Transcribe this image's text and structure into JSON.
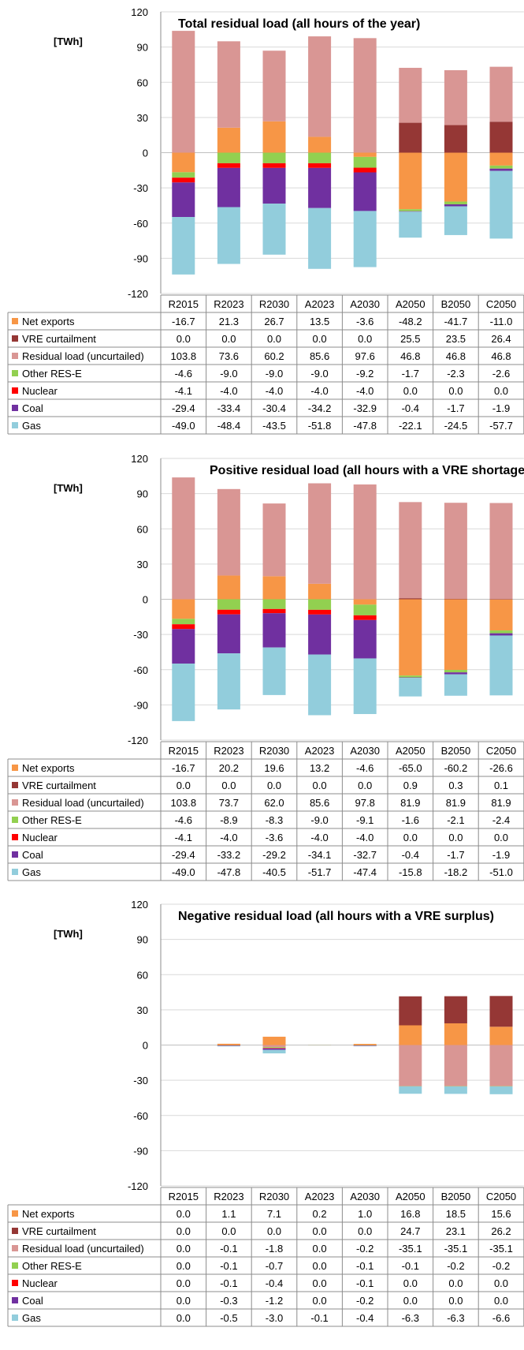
{
  "chart_data": [
    {
      "type": "bar",
      "title": "Total residual load (all hours of the year)",
      "ylabel": "[TWh]",
      "ylim": [
        -120,
        120
      ],
      "yticks": [
        120,
        90,
        60,
        30,
        0,
        -30,
        -60,
        -90,
        -120
      ],
      "categories": [
        "R2015",
        "R2023",
        "R2030",
        "A2023",
        "A2030",
        "A2050",
        "B2050",
        "C2050"
      ],
      "series": [
        {
          "name": "Net exports",
          "color": "#f79646",
          "values": [
            -16.7,
            21.3,
            26.7,
            13.5,
            -3.6,
            -48.2,
            -41.7,
            -11.0
          ]
        },
        {
          "name": "VRE curtailment",
          "color": "#953735",
          "values": [
            0.0,
            0.0,
            0.0,
            0.0,
            0.0,
            25.5,
            23.5,
            26.4
          ]
        },
        {
          "name": "Residual load (uncurtailed)",
          "color": "#d99694",
          "values": [
            103.8,
            73.6,
            60.2,
            85.6,
            97.6,
            46.8,
            46.8,
            46.8
          ]
        },
        {
          "name": "Other RES-E",
          "color": "#92d050",
          "values": [
            -4.6,
            -9.0,
            -9.0,
            -9.0,
            -9.2,
            -1.7,
            -2.3,
            -2.6
          ]
        },
        {
          "name": "Nuclear",
          "color": "#ff0000",
          "values": [
            -4.1,
            -4.0,
            -4.0,
            -4.0,
            -4.0,
            0.0,
            0.0,
            0.0
          ]
        },
        {
          "name": "Coal",
          "color": "#7030a0",
          "values": [
            -29.4,
            -33.4,
            -30.4,
            -34.2,
            -32.9,
            -0.4,
            -1.7,
            -1.9
          ]
        },
        {
          "name": "Gas",
          "color": "#92cddc",
          "values": [
            -49.0,
            -48.4,
            -43.5,
            -51.8,
            -47.8,
            -22.1,
            -24.5,
            -57.7
          ]
        }
      ],
      "table_rows": [
        [
          "-16.7",
          "21.3",
          "26.7",
          "13.5",
          "-3.6",
          "-48.2",
          "-41.7",
          "-11.0"
        ],
        [
          "0.0",
          "0.0",
          "0.0",
          "0.0",
          "0.0",
          "25.5",
          "23.5",
          "26.4"
        ],
        [
          "103.8",
          "73.6",
          "60.2",
          "85.6",
          "97.6",
          "46.8",
          "46.8",
          "46.8"
        ],
        [
          "-4.6",
          "-9.0",
          "-9.0",
          "-9.0",
          "-9.2",
          "-1.7",
          "-2.3",
          "-2.6"
        ],
        [
          "-4.1",
          "-4.0",
          "-4.0",
          "-4.0",
          "-4.0",
          "0.0",
          "0.0",
          "0.0"
        ],
        [
          "-29.4",
          "-33.4",
          "-30.4",
          "-34.2",
          "-32.9",
          "-0.4",
          "-1.7",
          "-1.9"
        ],
        [
          "-49.0",
          "-48.4",
          "-43.5",
          "-51.8",
          "-47.8",
          "-22.1",
          "-24.5",
          "-57.7"
        ]
      ]
    },
    {
      "type": "bar",
      "title": "Positive residual load (all hours with a VRE shortage)",
      "ylabel": "[TWh]",
      "ylim": [
        -120,
        120
      ],
      "yticks": [
        120,
        90,
        60,
        30,
        0,
        -30,
        -60,
        -90,
        -120
      ],
      "categories": [
        "R2015",
        "R2023",
        "R2030",
        "A2023",
        "A2030",
        "A2050",
        "B2050",
        "C2050"
      ],
      "series": [
        {
          "name": "Net exports",
          "color": "#f79646",
          "values": [
            -16.7,
            20.2,
            19.6,
            13.2,
            -4.6,
            -65.0,
            -60.2,
            -26.6
          ]
        },
        {
          "name": "VRE curtailment",
          "color": "#953735",
          "values": [
            0.0,
            0.0,
            0.0,
            0.0,
            0.0,
            0.9,
            0.3,
            0.1
          ]
        },
        {
          "name": "Residual load (uncurtailed)",
          "color": "#d99694",
          "values": [
            103.8,
            73.7,
            62.0,
            85.6,
            97.8,
            81.9,
            81.9,
            81.9
          ]
        },
        {
          "name": "Other RES-E",
          "color": "#92d050",
          "values": [
            -4.6,
            -8.9,
            -8.3,
            -9.0,
            -9.1,
            -1.6,
            -2.1,
            -2.4
          ]
        },
        {
          "name": "Nuclear",
          "color": "#ff0000",
          "values": [
            -4.1,
            -4.0,
            -3.6,
            -4.0,
            -4.0,
            0.0,
            0.0,
            0.0
          ]
        },
        {
          "name": "Coal",
          "color": "#7030a0",
          "values": [
            -29.4,
            -33.2,
            -29.2,
            -34.1,
            -32.7,
            -0.4,
            -1.7,
            -1.9
          ]
        },
        {
          "name": "Gas",
          "color": "#92cddc",
          "values": [
            -49.0,
            -47.8,
            -40.5,
            -51.7,
            -47.4,
            -15.8,
            -18.2,
            -51.0
          ]
        }
      ],
      "table_rows": [
        [
          "-16.7",
          "20.2",
          "19.6",
          "13.2",
          "-4.6",
          "-65.0",
          "-60.2",
          "-26.6"
        ],
        [
          "0.0",
          "0.0",
          "0.0",
          "0.0",
          "0.0",
          "0.9",
          "0.3",
          "0.1"
        ],
        [
          "103.8",
          "73.7",
          "62.0",
          "85.6",
          "97.8",
          "81.9",
          "81.9",
          "81.9"
        ],
        [
          "-4.6",
          "-8.9",
          "-8.3",
          "-9.0",
          "-9.1",
          "-1.6",
          "-2.1",
          "-2.4"
        ],
        [
          "-4.1",
          "-4.0",
          "-3.6",
          "-4.0",
          "-4.0",
          "0.0",
          "0.0",
          "0.0"
        ],
        [
          "-29.4",
          "-33.2",
          "-29.2",
          "-34.1",
          "-32.7",
          "-0.4",
          "-1.7",
          "-1.9"
        ],
        [
          "-49.0",
          "-47.8",
          "-40.5",
          "-51.7",
          "-47.4",
          "-15.8",
          "-18.2",
          "-51.0"
        ]
      ]
    },
    {
      "type": "bar",
      "title": "Negative residual load (all hours with a VRE surplus)",
      "ylabel": "[TWh]",
      "ylim": [
        -120,
        120
      ],
      "yticks": [
        120,
        90,
        60,
        30,
        0,
        -30,
        -60,
        -90,
        -120
      ],
      "categories": [
        "R2015",
        "R2023",
        "R2030",
        "A2023",
        "A2030",
        "A2050",
        "B2050",
        "C2050"
      ],
      "series": [
        {
          "name": "Net exports",
          "color": "#f79646",
          "values": [
            0.0,
            1.1,
            7.1,
            0.2,
            1.0,
            16.8,
            18.5,
            15.6
          ]
        },
        {
          "name": "VRE curtailment",
          "color": "#953735",
          "values": [
            0.0,
            0.0,
            0.0,
            0.0,
            0.0,
            24.7,
            23.1,
            26.2
          ]
        },
        {
          "name": "Residual load (uncurtailed)",
          "color": "#d99694",
          "values": [
            0.0,
            -0.1,
            -1.8,
            0.0,
            -0.2,
            -35.1,
            -35.1,
            -35.1
          ]
        },
        {
          "name": "Other RES-E",
          "color": "#92d050",
          "values": [
            0.0,
            -0.1,
            -0.7,
            0.0,
            -0.1,
            -0.1,
            -0.2,
            -0.2
          ]
        },
        {
          "name": "Nuclear",
          "color": "#ff0000",
          "values": [
            0.0,
            -0.1,
            -0.4,
            0.0,
            -0.1,
            0.0,
            0.0,
            0.0
          ]
        },
        {
          "name": "Coal",
          "color": "#7030a0",
          "values": [
            0.0,
            -0.3,
            -1.2,
            0.0,
            -0.2,
            0.0,
            0.0,
            0.0
          ]
        },
        {
          "name": "Gas",
          "color": "#92cddc",
          "values": [
            0.0,
            -0.5,
            -3.0,
            -0.1,
            -0.4,
            -6.3,
            -6.3,
            -6.6
          ]
        }
      ],
      "table_rows": [
        [
          "0.0",
          "1.1",
          "7.1",
          "0.2",
          "1.0",
          "16.8",
          "18.5",
          "15.6"
        ],
        [
          "0.0",
          "0.0",
          "0.0",
          "0.0",
          "0.0",
          "24.7",
          "23.1",
          "26.2"
        ],
        [
          "0.0",
          "-0.1",
          "-1.8",
          "0.0",
          "-0.2",
          "-35.1",
          "-35.1",
          "-35.1"
        ],
        [
          "0.0",
          "-0.1",
          "-0.7",
          "0.0",
          "-0.1",
          "-0.1",
          "-0.2",
          "-0.2"
        ],
        [
          "0.0",
          "-0.1",
          "-0.4",
          "0.0",
          "-0.1",
          "0.0",
          "0.0",
          "0.0"
        ],
        [
          "0.0",
          "-0.3",
          "-1.2",
          "0.0",
          "-0.2",
          "0.0",
          "0.0",
          "0.0"
        ],
        [
          "0.0",
          "-0.5",
          "-3.0",
          "-0.1",
          "-0.4",
          "-6.3",
          "-6.3",
          "-6.6"
        ]
      ]
    }
  ]
}
